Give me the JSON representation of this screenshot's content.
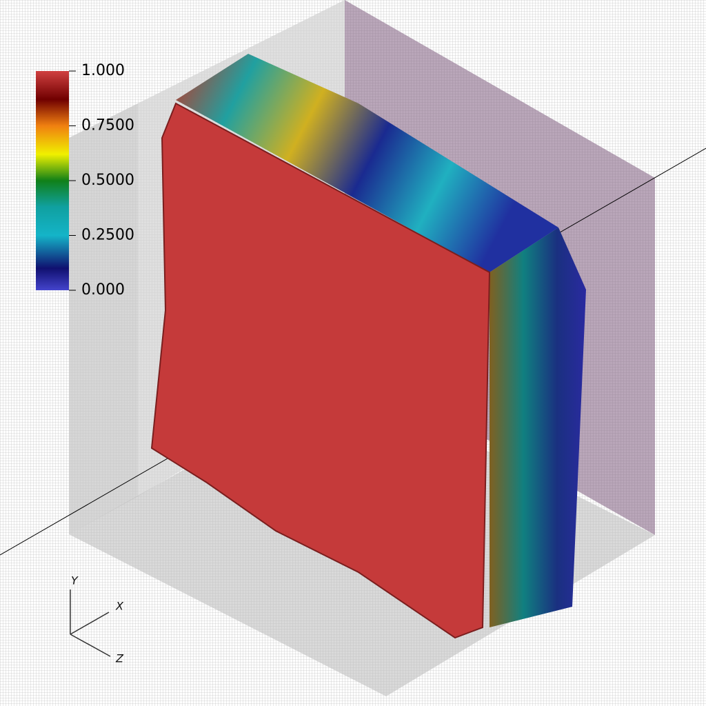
{
  "colorbar": {
    "range": [
      0,
      1
    ],
    "ticks": [
      {
        "value": 1,
        "label": "1.000"
      },
      {
        "value": 0.75,
        "label": "0.7500"
      },
      {
        "value": 0.5,
        "label": "0.5000"
      },
      {
        "value": 0.25,
        "label": "0.2500"
      },
      {
        "value": 0,
        "label": "0.000"
      }
    ]
  },
  "axes_triad": {
    "labels": [
      "Y",
      "X",
      "Z"
    ]
  }
}
